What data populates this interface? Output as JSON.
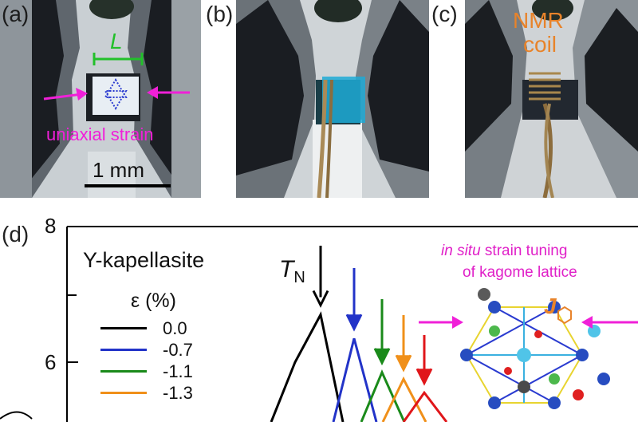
{
  "panels": {
    "a": {
      "label": "(a)",
      "length_label": "L",
      "strain_label": "uniaxial strain",
      "scale_bar": "1 mm"
    },
    "b": {
      "label": "(b)"
    },
    "c": {
      "label": "(c)",
      "coil_label_line1": "NMR",
      "coil_label_line2": "coil"
    },
    "d": {
      "label": "(d)",
      "material": "Y-kapellasite",
      "legend_title": "ε (%)",
      "transition_label": "T",
      "transition_sub": "N",
      "inset_title_italic": "in situ",
      "inset_title_rest": " strain tuning",
      "inset_title_line2": "of kagome lattice",
      "exchange_label": "J"
    }
  },
  "colors": {
    "magenta": "#f020d8",
    "green": "#22c02a",
    "orange": "#e8832a"
  },
  "chart_data": {
    "type": "line",
    "ylim": [
      4.6,
      8
    ],
    "yticks": [
      6,
      8
    ],
    "series": [
      {
        "name": "0.0",
        "color": "#000000",
        "peak": 6.7
      },
      {
        "name": "-0.7",
        "color": "#2233c8",
        "peak": 6.35
      },
      {
        "name": "-1.1",
        "color": "#1a8a1a",
        "peak": 5.85
      },
      {
        "name": "-1.3",
        "color": "#f0901a",
        "peak": 5.75
      },
      {
        "name": "",
        "color": "#e0161a",
        "peak": 5.55
      }
    ]
  }
}
